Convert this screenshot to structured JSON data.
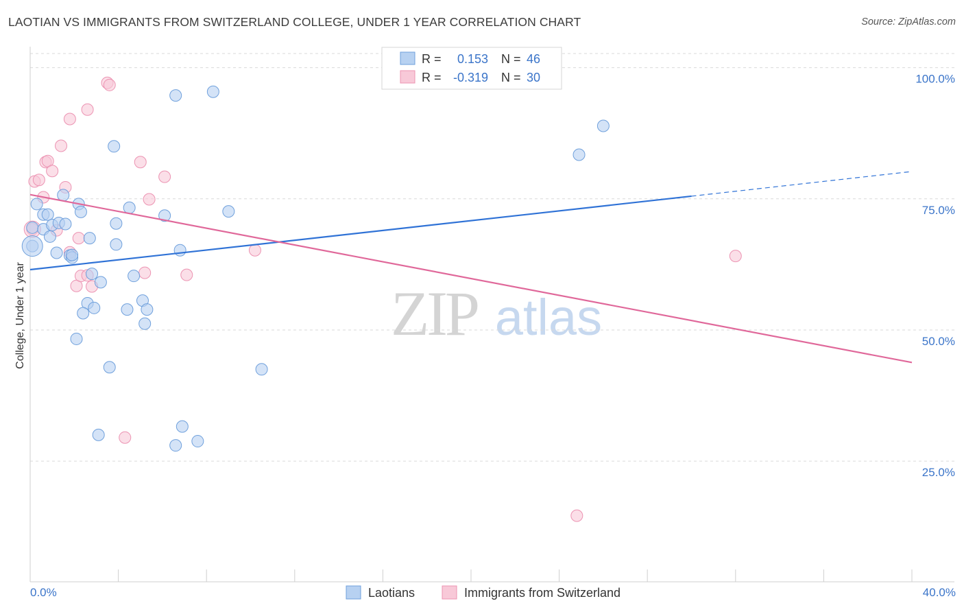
{
  "header": {
    "title": "LAOTIAN VS IMMIGRANTS FROM SWITZERLAND COLLEGE, UNDER 1 YEAR CORRELATION CHART",
    "source": "Source: ZipAtlas.com"
  },
  "watermark": {
    "zip": "ZIP",
    "atlas": "atlas"
  },
  "colors": {
    "blue_fill": "#b7d1f1",
    "blue_stroke": "#6fa0dc",
    "blue_line": "#2f72d6",
    "pink_fill": "#f8c9d8",
    "pink_stroke": "#ec93b2",
    "pink_line": "#e0689a",
    "value_text": "#3a74c9",
    "grid": "#d9d9d9"
  },
  "stats_legend": {
    "rows": [
      {
        "r_label": "R = ",
        "r_value": "0.153",
        "n_label": "N = ",
        "n_value": "46"
      },
      {
        "r_label": "R = ",
        "r_value": "-0.319",
        "n_label": "N = ",
        "n_value": "30"
      }
    ]
  },
  "chart_data": {
    "type": "scatter",
    "title": "LAOTIAN VS IMMIGRANTS FROM SWITZERLAND COLLEGE, UNDER 1 YEAR CORRELATION CHART",
    "xlabel": "",
    "ylabel": "College, Under 1 year",
    "xlim": [
      0,
      40
    ],
    "ylim": [
      2,
      104
    ],
    "x_tick_labels": [
      "0.0%",
      "40.0%"
    ],
    "y_ticks": [
      25,
      50,
      75,
      100
    ],
    "y_tick_labels": [
      "25.0%",
      "50.0%",
      "75.0%",
      "100.0%"
    ],
    "grid": true,
    "legend_position": "bottom",
    "series": [
      {
        "name": "Laotians",
        "color": "#b7d1f1",
        "points": [
          [
            0.1,
            69.5
          ],
          [
            0.1,
            66.0
          ],
          [
            0.3,
            74.0
          ],
          [
            0.6,
            72.0
          ],
          [
            0.8,
            72.0
          ],
          [
            0.6,
            69.2
          ],
          [
            0.9,
            67.8
          ],
          [
            1.0,
            70.0
          ],
          [
            1.3,
            70.4
          ],
          [
            1.6,
            70.2
          ],
          [
            1.2,
            64.7
          ],
          [
            1.5,
            75.7
          ],
          [
            1.8,
            64.2
          ],
          [
            1.9,
            63.8
          ],
          [
            2.2,
            74.0
          ],
          [
            2.3,
            72.5
          ],
          [
            2.7,
            67.5
          ],
          [
            2.8,
            60.7
          ],
          [
            3.2,
            59.1
          ],
          [
            2.6,
            55.1
          ],
          [
            2.4,
            53.2
          ],
          [
            2.9,
            54.2
          ],
          [
            2.1,
            48.3
          ],
          [
            3.6,
            42.9
          ],
          [
            3.1,
            30.0
          ],
          [
            3.8,
            85.0
          ],
          [
            3.9,
            66.3
          ],
          [
            3.9,
            70.3
          ],
          [
            4.4,
            53.9
          ],
          [
            4.5,
            73.3
          ],
          [
            4.7,
            60.3
          ],
          [
            5.1,
            55.6
          ],
          [
            5.2,
            51.2
          ],
          [
            5.3,
            53.9
          ],
          [
            6.1,
            71.8
          ],
          [
            6.6,
            94.7
          ],
          [
            6.6,
            28.0
          ],
          [
            6.8,
            65.2
          ],
          [
            6.9,
            31.6
          ],
          [
            7.6,
            28.8
          ],
          [
            8.3,
            95.4
          ],
          [
            9.0,
            72.6
          ],
          [
            10.5,
            42.5
          ],
          [
            24.9,
            83.4
          ],
          [
            26.0,
            88.9
          ],
          [
            1.9,
            64.3
          ]
        ]
      },
      {
        "name": "Immigrants from Switzerland",
        "color": "#f8c9d8",
        "points": [
          [
            0.1,
            69.2
          ],
          [
            0.2,
            78.3
          ],
          [
            0.4,
            78.6
          ],
          [
            0.6,
            75.3
          ],
          [
            0.7,
            82.0
          ],
          [
            0.8,
            82.2
          ],
          [
            1.0,
            80.3
          ],
          [
            1.2,
            69.0
          ],
          [
            1.4,
            85.1
          ],
          [
            1.6,
            77.2
          ],
          [
            1.8,
            64.8
          ],
          [
            1.8,
            90.2
          ],
          [
            2.1,
            58.4
          ],
          [
            2.2,
            67.5
          ],
          [
            2.3,
            60.3
          ],
          [
            2.6,
            92.0
          ],
          [
            2.6,
            60.4
          ],
          [
            2.8,
            58.3
          ],
          [
            3.5,
            97.1
          ],
          [
            3.6,
            96.7
          ],
          [
            4.3,
            29.5
          ],
          [
            5.0,
            82.0
          ],
          [
            5.2,
            60.9
          ],
          [
            5.4,
            74.9
          ],
          [
            6.1,
            79.2
          ],
          [
            7.1,
            60.5
          ],
          [
            10.2,
            65.2
          ],
          [
            18.0,
            100.5
          ],
          [
            24.8,
            14.6
          ],
          [
            32.0,
            64.1
          ]
        ]
      }
    ],
    "trend_lines": [
      {
        "name": "Laotians",
        "from": [
          0,
          61.5
        ],
        "to": [
          30,
          75.5
        ],
        "dashed_to": [
          40,
          80.2
        ]
      },
      {
        "name": "Immigrants from Switzerland",
        "from": [
          0,
          75.8
        ],
        "to": [
          40,
          43.8
        ]
      }
    ]
  }
}
